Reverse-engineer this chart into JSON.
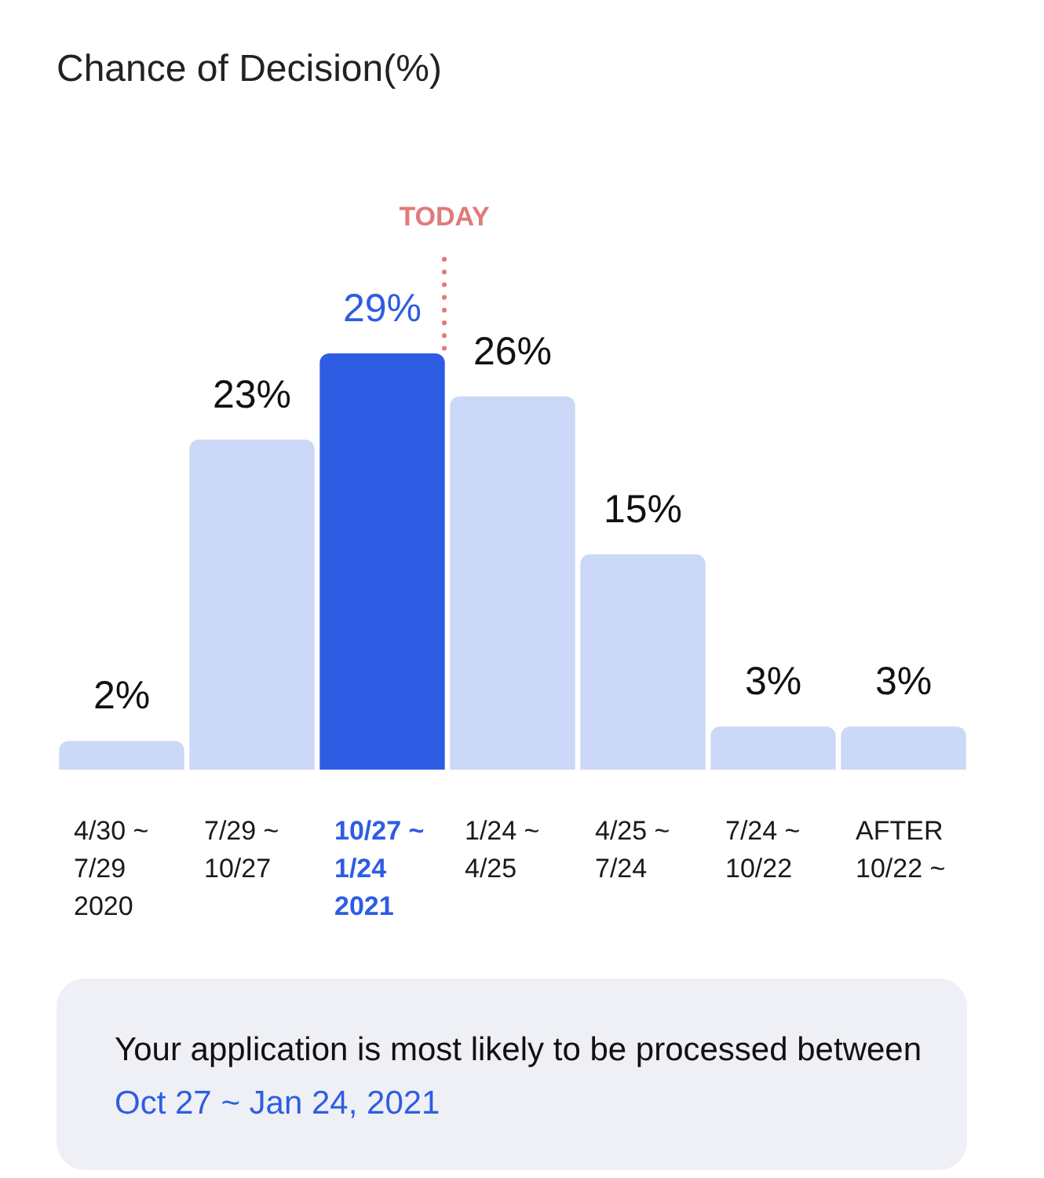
{
  "chart_data": {
    "type": "bar",
    "title": "Chance of Decision(%)",
    "categories": [
      "4/30 ~ 7/29 2020",
      "7/29 ~ 10/27",
      "10/27 ~ 1/24 2021",
      "1/24 ~ 4/25",
      "4/25 ~ 7/24",
      "7/24 ~ 10/22",
      "AFTER 10/22 ~"
    ],
    "values": [
      2,
      23,
      29,
      26,
      15,
      3,
      3
    ],
    "colors": [
      "#cbd8f7",
      "#cbd8f7",
      "#2e5de3",
      "#cbd8f7",
      "#cbd8f7",
      "#cbd8f7",
      "#cbd8f7"
    ],
    "value_labels": [
      "2%",
      "23%",
      "29%",
      "26%",
      "15%",
      "3%",
      "3%"
    ],
    "annotations": [
      "TODAY",
      "Your application is most likely to be processed between",
      "Oct 27 ~ Jan 24, 2021"
    ]
  }
}
